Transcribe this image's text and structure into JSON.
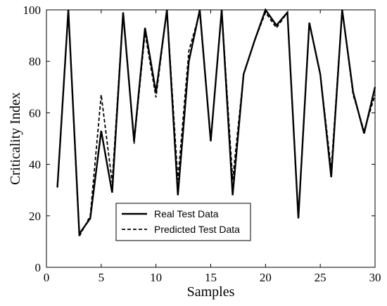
{
  "chart_data": {
    "type": "line",
    "xlabel": "Samples",
    "ylabel": "Criticality Index",
    "xlim": [
      0,
      30
    ],
    "ylim": [
      0,
      100
    ],
    "xticks": [
      0,
      5,
      10,
      15,
      20,
      25,
      30
    ],
    "yticks": [
      0,
      20,
      40,
      60,
      80,
      100
    ],
    "grid": false,
    "legend_position": "bottom-center",
    "x": [
      1,
      2,
      3,
      4,
      5,
      6,
      7,
      8,
      9,
      10,
      11,
      12,
      13,
      14,
      15,
      16,
      17,
      18,
      19,
      20,
      21,
      22,
      23,
      24,
      25,
      26,
      27,
      28,
      29,
      30
    ],
    "series": [
      {
        "name": "Real Test Data",
        "style": "solid",
        "color": "#000000",
        "values": [
          31,
          100,
          13,
          19,
          53,
          29,
          99,
          49,
          93,
          68,
          100,
          28,
          80,
          100,
          49,
          100,
          28,
          75,
          88,
          100,
          94,
          99,
          19,
          95,
          75,
          35,
          100,
          68,
          52,
          70
        ]
      },
      {
        "name": "Predicted Test Data",
        "style": "dashed",
        "color": "#000000",
        "values": [
          31,
          100,
          12,
          20,
          67,
          33,
          99,
          48,
          91,
          66,
          100,
          34,
          84,
          99,
          49,
          100,
          34,
          75,
          88,
          99,
          93,
          99,
          19,
          95,
          75,
          38,
          100,
          67,
          53,
          67
        ]
      }
    ]
  }
}
